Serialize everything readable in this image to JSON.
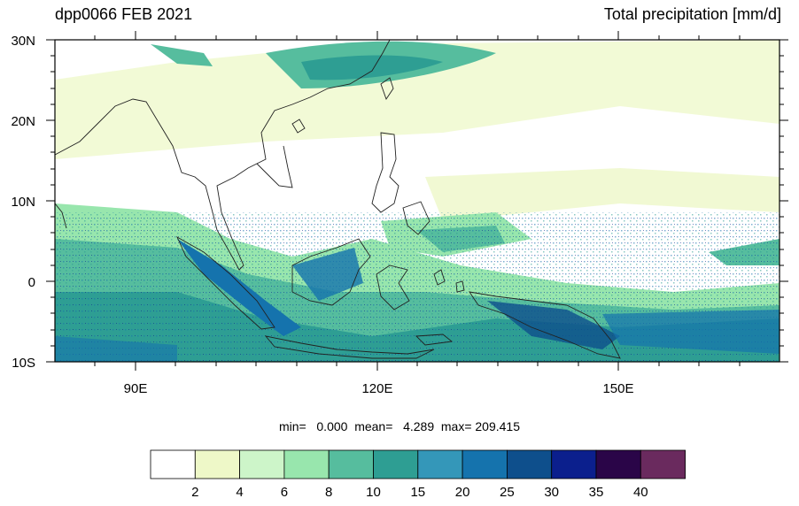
{
  "header": {
    "left_title": "dpp0066 FEB 2021",
    "right_title": "Total precipitation [mm/d]"
  },
  "map": {
    "lat_labels": [
      "30N",
      "20N",
      "10N",
      "0",
      "10S"
    ],
    "lon_labels": [
      "90E",
      "120E",
      "150E"
    ],
    "extent": {
      "lon_min": 80,
      "lon_max": 170,
      "lat_min": -10,
      "lat_max": 30
    }
  },
  "stats": {
    "text": "min=   0.000  mean=   4.289  max= 209.415"
  },
  "legend": {
    "tick_labels": [
      "2",
      "4",
      "6",
      "8",
      "10",
      "15",
      "20",
      "25",
      "30",
      "35",
      "40"
    ],
    "colors": [
      "#ffffff",
      "#eef8c8",
      "#cdf5c9",
      "#98e6ad",
      "#56bd9e",
      "#2e9e93",
      "#3497b9",
      "#1573ad",
      "#0e4f8c",
      "#0b1f8d",
      "#2a0548",
      "#6a2a5e"
    ]
  }
}
